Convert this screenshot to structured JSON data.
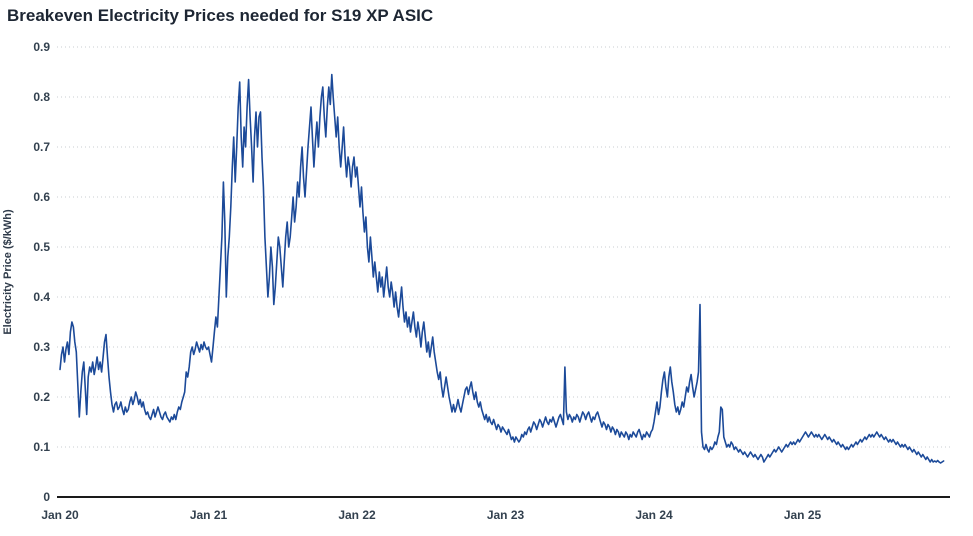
{
  "title": "Breakeven Electricity Prices needed for S19 XP ASIC",
  "colors": {
    "line": "#1c4a99",
    "grid": "#c9cdd2",
    "axis": "#1a1a1a",
    "title_text": "#1d2633",
    "tick_text": "#33414f"
  },
  "chart_data": {
    "type": "line",
    "title": "Breakeven Electricity Prices needed for S19 XP ASIC",
    "xlabel": "",
    "ylabel": "Electricity Price ($/kWh)",
    "legend": "none",
    "grid": "horizontal dotted",
    "ylim": [
      0,
      0.9
    ],
    "y_ticks": [
      0,
      0.1,
      0.2,
      0.3,
      0.4,
      0.5,
      0.6,
      0.7,
      0.8,
      0.9
    ],
    "y_tick_labels": [
      "0",
      "0.1",
      "0.2",
      "0.3",
      "0.4",
      "0.5",
      "0.6",
      "0.7",
      "0.8",
      "0.9"
    ],
    "x_tick_labels": [
      "Jan 20",
      "Jan 21",
      "Jan 22",
      "Jan 23",
      "Jan 24",
      "Jan 25"
    ],
    "x_tick_positions": [
      0,
      1,
      2,
      3,
      4,
      5
    ],
    "x_unit": "years since Jan 2020",
    "xlim": [
      0,
      5.99
    ],
    "line_color": "#1c4a99",
    "series": [
      {
        "name": "Breakeven electricity price ($/kWh)",
        "t0": 0,
        "dt": 0.01,
        "values": [
          0.255,
          0.285,
          0.3,
          0.27,
          0.295,
          0.31,
          0.285,
          0.33,
          0.35,
          0.34,
          0.31,
          0.29,
          0.225,
          0.16,
          0.21,
          0.25,
          0.27,
          0.22,
          0.165,
          0.24,
          0.26,
          0.25,
          0.27,
          0.245,
          0.26,
          0.28,
          0.255,
          0.27,
          0.25,
          0.28,
          0.31,
          0.325,
          0.28,
          0.24,
          0.21,
          0.185,
          0.17,
          0.185,
          0.19,
          0.175,
          0.18,
          0.19,
          0.175,
          0.165,
          0.18,
          0.17,
          0.175,
          0.19,
          0.2,
          0.185,
          0.195,
          0.21,
          0.2,
          0.185,
          0.195,
          0.18,
          0.19,
          0.175,
          0.165,
          0.17,
          0.16,
          0.155,
          0.165,
          0.175,
          0.16,
          0.17,
          0.18,
          0.17,
          0.16,
          0.155,
          0.165,
          0.17,
          0.16,
          0.155,
          0.15,
          0.16,
          0.155,
          0.165,
          0.155,
          0.17,
          0.18,
          0.175,
          0.19,
          0.2,
          0.21,
          0.25,
          0.24,
          0.26,
          0.29,
          0.3,
          0.285,
          0.295,
          0.31,
          0.3,
          0.29,
          0.305,
          0.295,
          0.31,
          0.3,
          0.295,
          0.3,
          0.285,
          0.27,
          0.3,
          0.33,
          0.36,
          0.34,
          0.4,
          0.46,
          0.52,
          0.63,
          0.55,
          0.4,
          0.48,
          0.52,
          0.58,
          0.66,
          0.72,
          0.63,
          0.7,
          0.78,
          0.83,
          0.72,
          0.66,
          0.74,
          0.7,
          0.78,
          0.835,
          0.76,
          0.7,
          0.63,
          0.72,
          0.77,
          0.7,
          0.76,
          0.77,
          0.68,
          0.62,
          0.52,
          0.46,
          0.4,
          0.44,
          0.5,
          0.46,
          0.385,
          0.42,
          0.47,
          0.52,
          0.5,
          0.46,
          0.42,
          0.47,
          0.52,
          0.55,
          0.5,
          0.52,
          0.56,
          0.6,
          0.55,
          0.58,
          0.63,
          0.6,
          0.66,
          0.7,
          0.64,
          0.6,
          0.65,
          0.7,
          0.74,
          0.78,
          0.72,
          0.66,
          0.71,
          0.75,
          0.7,
          0.76,
          0.8,
          0.82,
          0.76,
          0.72,
          0.78,
          0.82,
          0.785,
          0.845,
          0.8,
          0.76,
          0.72,
          0.76,
          0.7,
          0.66,
          0.7,
          0.74,
          0.68,
          0.64,
          0.68,
          0.66,
          0.62,
          0.66,
          0.68,
          0.64,
          0.66,
          0.62,
          0.58,
          0.62,
          0.57,
          0.53,
          0.56,
          0.5,
          0.47,
          0.52,
          0.48,
          0.44,
          0.47,
          0.44,
          0.41,
          0.45,
          0.42,
          0.44,
          0.4,
          0.43,
          0.46,
          0.42,
          0.4,
          0.43,
          0.41,
          0.38,
          0.41,
          0.38,
          0.36,
          0.39,
          0.42,
          0.38,
          0.35,
          0.37,
          0.34,
          0.36,
          0.33,
          0.35,
          0.37,
          0.34,
          0.32,
          0.35,
          0.33,
          0.3,
          0.33,
          0.35,
          0.32,
          0.29,
          0.31,
          0.28,
          0.3,
          0.32,
          0.29,
          0.27,
          0.25,
          0.235,
          0.25,
          0.22,
          0.2,
          0.22,
          0.24,
          0.22,
          0.2,
          0.185,
          0.17,
          0.185,
          0.17,
          0.18,
          0.195,
          0.18,
          0.17,
          0.185,
          0.2,
          0.215,
          0.22,
          0.205,
          0.22,
          0.23,
          0.21,
          0.195,
          0.21,
          0.19,
          0.18,
          0.19,
          0.175,
          0.165,
          0.155,
          0.165,
          0.15,
          0.16,
          0.15,
          0.145,
          0.155,
          0.145,
          0.135,
          0.145,
          0.14,
          0.13,
          0.14,
          0.135,
          0.13,
          0.125,
          0.135,
          0.125,
          0.115,
          0.12,
          0.11,
          0.12,
          0.115,
          0.11,
          0.115,
          0.125,
          0.12,
          0.13,
          0.125,
          0.135,
          0.14,
          0.13,
          0.14,
          0.15,
          0.145,
          0.135,
          0.145,
          0.155,
          0.15,
          0.14,
          0.15,
          0.16,
          0.15,
          0.145,
          0.155,
          0.15,
          0.16,
          0.15,
          0.14,
          0.15,
          0.16,
          0.165,
          0.155,
          0.145,
          0.26,
          0.17,
          0.155,
          0.165,
          0.16,
          0.15,
          0.16,
          0.155,
          0.165,
          0.16,
          0.15,
          0.16,
          0.17,
          0.165,
          0.155,
          0.165,
          0.17,
          0.16,
          0.15,
          0.16,
          0.155,
          0.165,
          0.17,
          0.16,
          0.15,
          0.14,
          0.15,
          0.145,
          0.135,
          0.145,
          0.14,
          0.13,
          0.14,
          0.135,
          0.125,
          0.135,
          0.13,
          0.12,
          0.13,
          0.125,
          0.12,
          0.13,
          0.125,
          0.115,
          0.125,
          0.12,
          0.13,
          0.125,
          0.12,
          0.13,
          0.135,
          0.125,
          0.115,
          0.125,
          0.12,
          0.13,
          0.125,
          0.12,
          0.13,
          0.135,
          0.15,
          0.17,
          0.19,
          0.165,
          0.18,
          0.21,
          0.235,
          0.25,
          0.22,
          0.2,
          0.24,
          0.26,
          0.23,
          0.21,
          0.185,
          0.17,
          0.18,
          0.165,
          0.175,
          0.19,
          0.18,
          0.2,
          0.22,
          0.21,
          0.23,
          0.245,
          0.22,
          0.2,
          0.215,
          0.23,
          0.25,
          0.385,
          0.13,
          0.1,
          0.095,
          0.105,
          0.095,
          0.09,
          0.1,
          0.095,
          0.1,
          0.11,
          0.105,
          0.12,
          0.13,
          0.18,
          0.175,
          0.12,
          0.11,
          0.1,
          0.105,
          0.1,
          0.11,
          0.105,
          0.095,
          0.1,
          0.095,
          0.09,
          0.095,
          0.09,
          0.085,
          0.09,
          0.085,
          0.08,
          0.085,
          0.09,
          0.085,
          0.08,
          0.085,
          0.08,
          0.075,
          0.08,
          0.085,
          0.08,
          0.07,
          0.075,
          0.08,
          0.085,
          0.08,
          0.085,
          0.09,
          0.095,
          0.09,
          0.095,
          0.1,
          0.095,
          0.09,
          0.095,
          0.1,
          0.105,
          0.1,
          0.105,
          0.11,
          0.105,
          0.11,
          0.105,
          0.11,
          0.115,
          0.11,
          0.115,
          0.12,
          0.125,
          0.13,
          0.125,
          0.12,
          0.125,
          0.13,
          0.125,
          0.12,
          0.125,
          0.12,
          0.125,
          0.12,
          0.115,
          0.12,
          0.125,
          0.12,
          0.115,
          0.12,
          0.115,
          0.11,
          0.115,
          0.11,
          0.105,
          0.11,
          0.105,
          0.1,
          0.105,
          0.1,
          0.095,
          0.1,
          0.095,
          0.1,
          0.105,
          0.1,
          0.105,
          0.11,
          0.105,
          0.11,
          0.115,
          0.11,
          0.115,
          0.12,
          0.115,
          0.12,
          0.125,
          0.12,
          0.125,
          0.12,
          0.125,
          0.13,
          0.125,
          0.12,
          0.125,
          0.12,
          0.115,
          0.12,
          0.115,
          0.11,
          0.115,
          0.11,
          0.115,
          0.11,
          0.105,
          0.11,
          0.105,
          0.1,
          0.105,
          0.1,
          0.105,
          0.1,
          0.095,
          0.1,
          0.095,
          0.09,
          0.095,
          0.09,
          0.085,
          0.09,
          0.085,
          0.08,
          0.085,
          0.08,
          0.075,
          0.08,
          0.075,
          0.07,
          0.075,
          0.07,
          0.072,
          0.07,
          0.073,
          0.07,
          0.068,
          0.07,
          0.072
        ]
      }
    ]
  }
}
